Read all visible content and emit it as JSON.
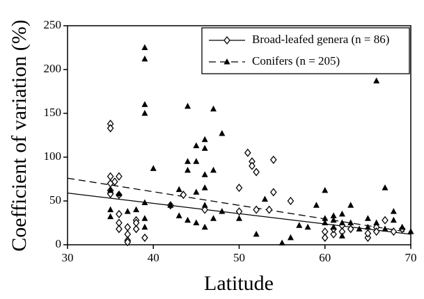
{
  "chart_data": {
    "type": "scatter",
    "xlabel": "Latitude",
    "ylabel": "Coefficient of variation (%)",
    "xlim": [
      30,
      70
    ],
    "ylim": [
      0,
      250
    ],
    "xticks": [
      30,
      40,
      50,
      60,
      70
    ],
    "yticks": [
      0,
      50,
      100,
      150,
      200,
      250
    ],
    "legend": "upper right",
    "series": [
      {
        "name": "Broad-leafed genera (n = 86)",
        "color": "#000000",
        "marker": "diamond",
        "line": "solid",
        "x": [
          35,
          35,
          35,
          35,
          35,
          35,
          35.5,
          36,
          36,
          36,
          36,
          36,
          37,
          37,
          37,
          37,
          38,
          38,
          38,
          39,
          42,
          43.5,
          46,
          50,
          50,
          51,
          51.5,
          51.5,
          52,
          52,
          53.5,
          54,
          54,
          56,
          60,
          60,
          61,
          61,
          62,
          62,
          63,
          65,
          65,
          66,
          66,
          67,
          68,
          69
        ],
        "values": [
          138,
          133,
          78,
          70,
          62,
          58,
          72,
          78,
          57,
          35,
          25,
          18,
          20,
          12,
          5,
          3,
          28,
          18,
          25,
          8,
          45,
          57,
          40,
          65,
          38,
          105,
          95,
          90,
          83,
          40,
          40,
          97,
          60,
          50,
          15,
          8,
          12,
          18,
          22,
          15,
          18,
          8,
          13,
          20,
          15,
          28,
          15,
          18
        ]
      },
      {
        "name": "Conifers (n = 205)",
        "color": "#000000",
        "marker": "triangle",
        "line": "dashed",
        "x": [
          35,
          35,
          35,
          36,
          37,
          38,
          39,
          39,
          39,
          39,
          39,
          39,
          39,
          40,
          42,
          43,
          43,
          44,
          44,
          44,
          44,
          45,
          45,
          45,
          45,
          46,
          46,
          46,
          46,
          46,
          46,
          47,
          47,
          47,
          48,
          48,
          50,
          52,
          53,
          55,
          56,
          57,
          58,
          59,
          60,
          60,
          60,
          61,
          61,
          61,
          62,
          62,
          62,
          63,
          63,
          64,
          65,
          65,
          66,
          66,
          67,
          67,
          68,
          68,
          69,
          70
        ],
        "values": [
          40,
          32,
          62,
          58,
          38,
          40,
          225,
          212,
          160,
          150,
          48,
          30,
          20,
          87,
          45,
          63,
          33,
          158,
          95,
          85,
          28,
          113,
          95,
          60,
          25,
          120,
          110,
          80,
          65,
          45,
          20,
          155,
          85,
          30,
          127,
          38,
          30,
          12,
          52,
          2,
          8,
          22,
          20,
          45,
          62,
          30,
          25,
          33,
          28,
          20,
          35,
          25,
          10,
          45,
          25,
          18,
          30,
          20,
          187,
          25,
          65,
          18,
          38,
          28,
          20,
          15
        ]
      }
    ],
    "trend_lines": [
      {
        "series": 0,
        "x": [
          30,
          70
        ],
        "values": [
          59,
          12
        ]
      },
      {
        "series": 1,
        "x": [
          30,
          70
        ],
        "values": [
          76,
          14
        ]
      }
    ]
  }
}
